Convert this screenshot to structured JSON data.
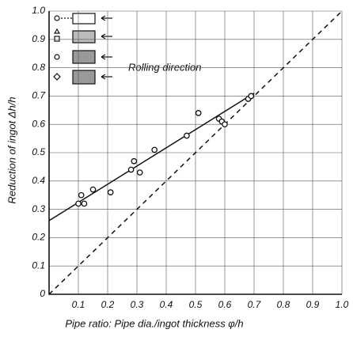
{
  "chart_data": {
    "type": "scatter",
    "x_label": "Pipe ratio: Pipe dia./ingot thickness φ/h",
    "y_label": "Reduction of ingot Δh/h",
    "annotation": "Rolling direction",
    "xlim": [
      0,
      1
    ],
    "ylim": [
      0,
      1
    ],
    "xticks": [
      0.1,
      0.2,
      0.3,
      0.4,
      0.5,
      0.6,
      0.7,
      0.8,
      0.9,
      {
        "value": 1,
        "label": "1.0"
      }
    ],
    "yticks": [
      0,
      0.1,
      0.2,
      0.3,
      0.4,
      0.5,
      0.6,
      0.7,
      0.8,
      0.9,
      {
        "value": 1,
        "label": "1.0"
      }
    ],
    "grid": true,
    "color": "#111",
    "x": [
      0.1,
      0.11,
      0.12,
      0.15,
      0.21,
      0.28,
      0.29,
      0.31,
      0.36,
      0.47,
      0.51,
      0.58,
      0.59,
      0.6,
      0.68,
      0.69
    ],
    "values": [
      0.32,
      0.35,
      0.32,
      0.37,
      0.36,
      0.44,
      0.47,
      0.43,
      0.51,
      0.56,
      0.64,
      0.62,
      0.61,
      0.6,
      0.69,
      0.7
    ],
    "lines": [
      {
        "style": "solid",
        "x": [
          0,
          0.7
        ],
        "y": [
          0.26,
          0.71
        ]
      },
      {
        "style": "dashed",
        "x": [
          0,
          1
        ],
        "y": [
          0,
          1
        ]
      }
    ]
  }
}
